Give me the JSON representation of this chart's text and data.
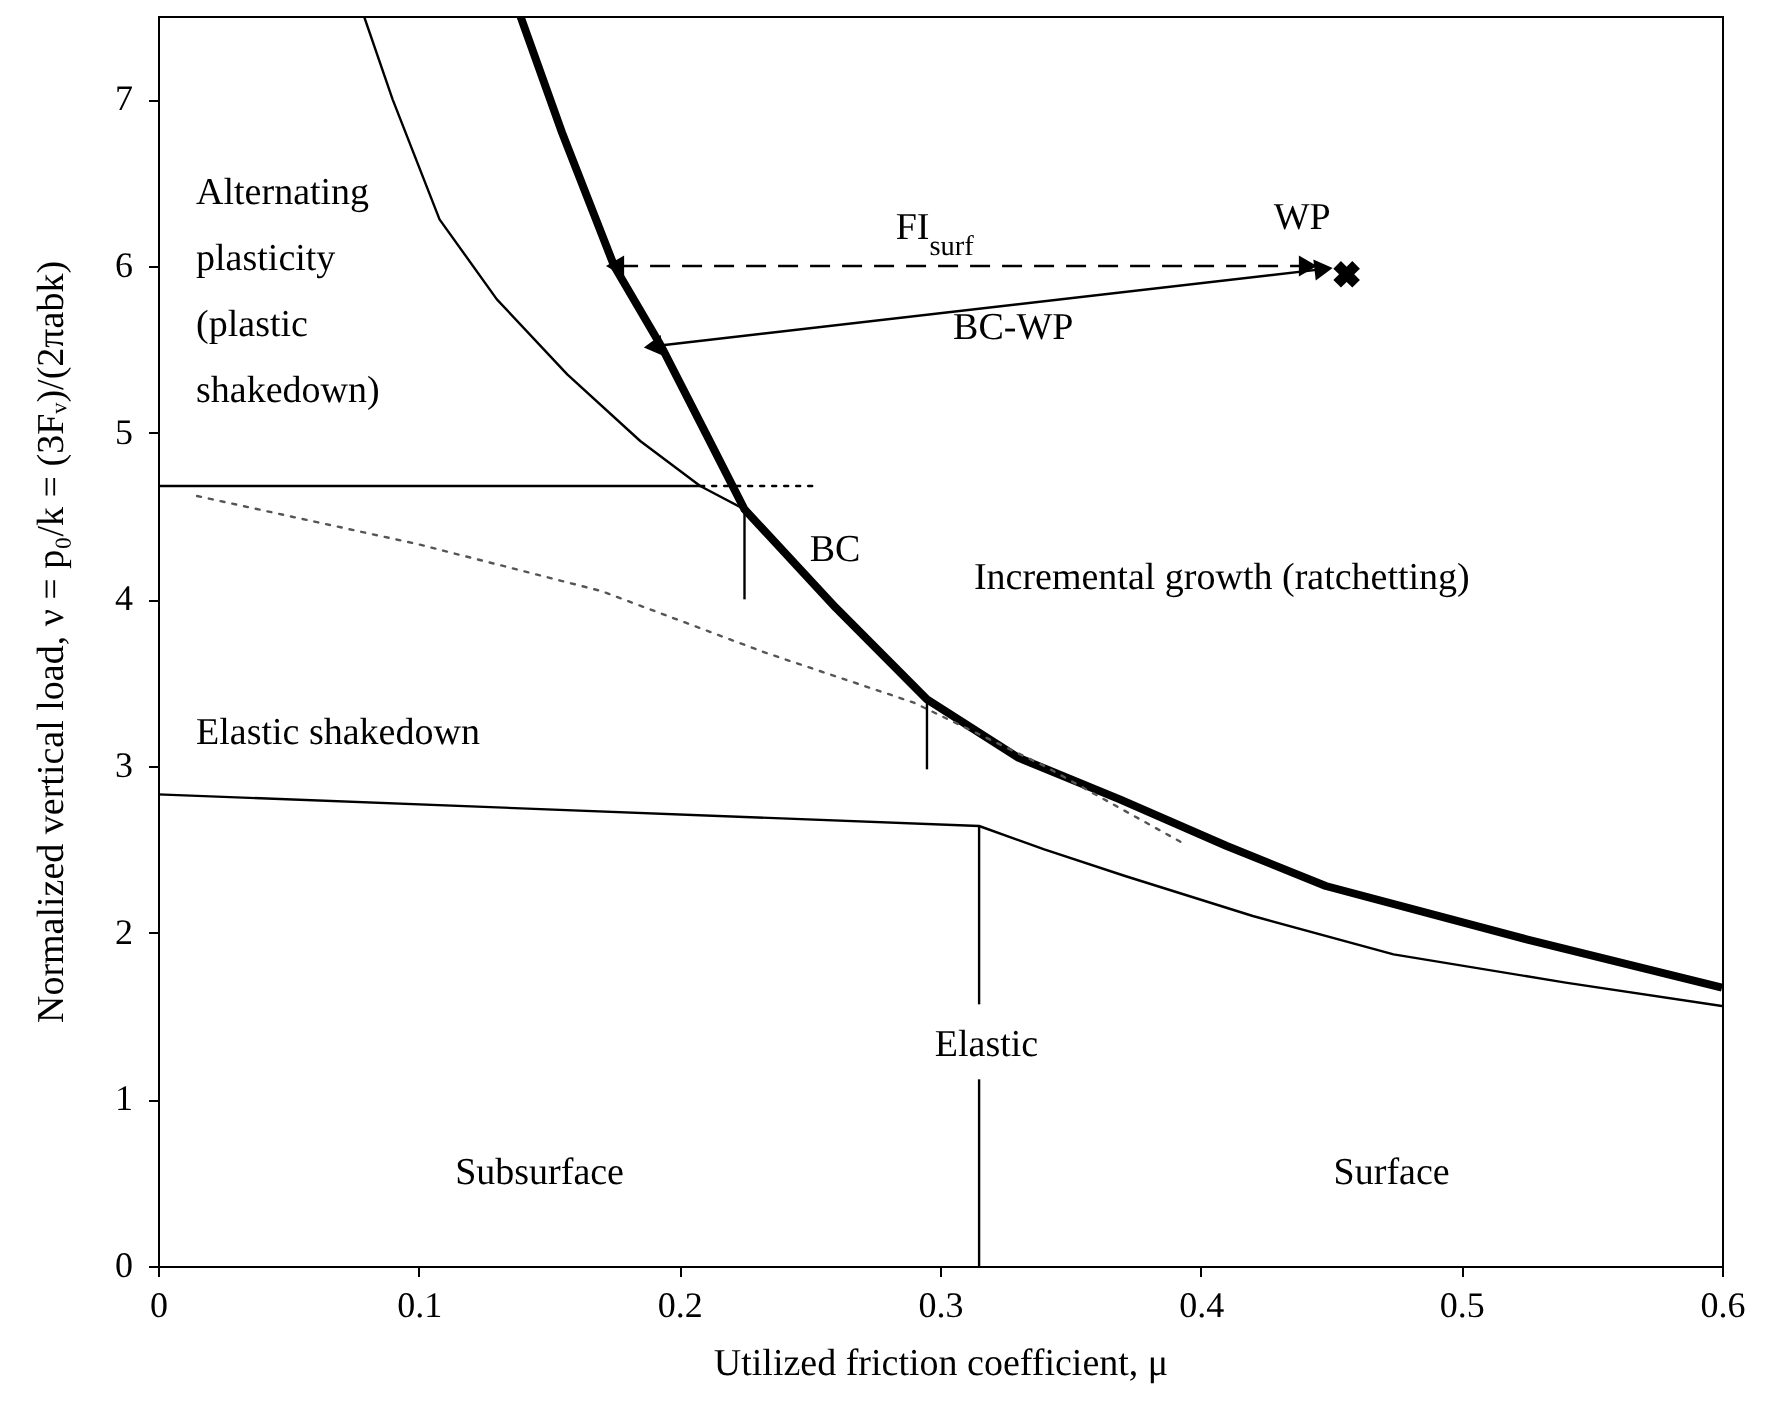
{
  "chart_data": {
    "type": "line",
    "xlabel": "Utilized friction coefficient, μ",
    "ylabel": "Normalized vertical load, ν = p₀/k = (3Fᵥ)/(2πabk)",
    "xlim": [
      0,
      0.6
    ],
    "xticks": [
      0,
      0.1,
      0.2,
      0.3,
      0.4,
      0.5,
      0.6
    ],
    "ylim": [
      0,
      7.5
    ],
    "yticks": [
      0,
      1,
      2,
      3,
      4,
      5,
      6,
      7
    ],
    "series": [
      {
        "color": "#000000",
        "x": [
          0.139,
          0.155,
          0.175,
          0.193,
          0.21,
          0.225,
          0.26,
          0.295,
          0.33,
          0.369,
          0.41,
          0.448,
          0.525,
          0.6
        ],
        "values": [
          7.5,
          6.8,
          6.0,
          5.52,
          5.0,
          4.54,
          3.95,
          3.4,
          3.05,
          2.8,
          2.52,
          2.28,
          1.96,
          1.67
        ]
      },
      {
        "color": "#000000",
        "x": [
          0.079,
          0.09,
          0.108,
          0.13,
          0.157,
          0.185,
          0.208,
          0.225
        ],
        "values": [
          7.5,
          7.0,
          6.28,
          5.8,
          5.35,
          4.95,
          4.68,
          4.54
        ]
      },
      {
        "color": "#000000",
        "x": [
          0,
          0.208
        ],
        "values": [
          4.68,
          4.68
        ]
      },
      {
        "color": "#000000",
        "line_style": "dotted",
        "x": [
          0.208,
          0.252
        ],
        "values": [
          4.68,
          4.68
        ]
      },
      {
        "color": "#555555",
        "line_style": "dotted",
        "x": [
          0.015,
          0.1,
          0.17,
          0.233,
          0.29,
          0.34,
          0.394
        ],
        "values": [
          4.62,
          4.33,
          4.05,
          3.68,
          3.38,
          3.0,
          2.53
        ]
      },
      {
        "color": "#000000",
        "x": [
          0,
          0.315,
          0.34,
          0.371,
          0.42,
          0.474,
          0.54,
          0.6
        ],
        "values": [
          2.83,
          2.64,
          2.5,
          2.34,
          2.1,
          1.87,
          1.7,
          1.56
        ]
      },
      {
        "color": "#000000",
        "x": [
          0.315,
          0.315
        ],
        "values": [
          0,
          1.12
        ]
      },
      {
        "color": "#000000",
        "x": [
          0.315,
          0.315
        ],
        "values": [
          1.57,
          2.64
        ]
      },
      {
        "color": "#000000",
        "x": [
          0.225,
          0.225
        ],
        "values": [
          4.54,
          4.0
        ]
      },
      {
        "color": "#000000",
        "x": [
          0.295,
          0.295
        ],
        "values": [
          3.4,
          2.98
        ]
      },
      {
        "color": "#000000",
        "line_style": "dashed",
        "marker": "triangle",
        "x": [
          0.1765,
          0.44
        ],
        "values": [
          6.0,
          6.0
        ]
      },
      {
        "color": "#000000",
        "marker": "triangle",
        "x": [
          0.191,
          0.446
        ],
        "values": [
          5.52,
          5.98
        ]
      },
      {
        "type": "scatter",
        "color": "#000000",
        "marker": "cross",
        "x": [
          0.456
        ],
        "values": [
          5.95
        ]
      }
    ],
    "annotations": [
      "Alternating\nplasticity\n(plastic\nshakedown)",
      "Elastic shakedown",
      "Incremental growth (ratchetting)",
      "BC",
      "FI$_{surf}$",
      "WP",
      "BC-WP",
      "Elastic",
      "Subsurface",
      "Surface"
    ]
  }
}
